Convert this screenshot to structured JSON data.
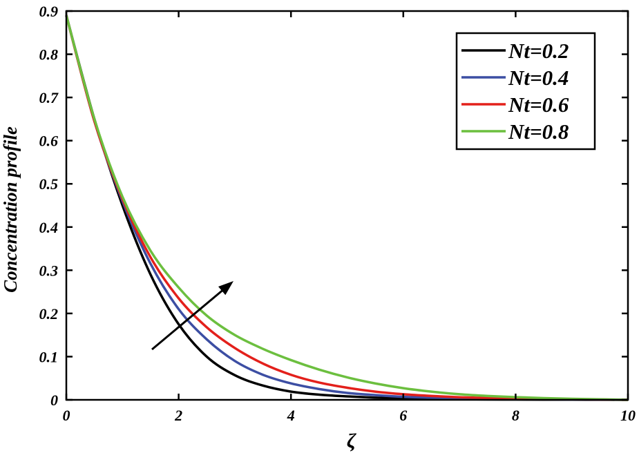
{
  "chart_data": {
    "type": "line",
    "xlabel": "ζ",
    "ylabel": "Concentration profile",
    "xlim": [
      0,
      10
    ],
    "ylim": [
      0,
      0.9
    ],
    "xticks": [
      0,
      2,
      4,
      6,
      8,
      10
    ],
    "yticks": [
      0,
      0.1,
      0.2,
      0.3,
      0.4,
      0.5,
      0.6,
      0.7,
      0.8,
      0.9
    ],
    "xtick_labels": [
      "0",
      "2",
      "4",
      "6",
      "8",
      "10"
    ],
    "ytick_labels": [
      "0",
      "0.1",
      "0.2",
      "0.3",
      "0.4",
      "0.5",
      "0.6",
      "0.7",
      "0.8",
      "0.9"
    ],
    "grid": false,
    "legend_position": "top-right",
    "annotation": "arrow indicating increasing Nt",
    "x": [
      0,
      0.5,
      1,
      1.5,
      2,
      2.5,
      3,
      3.5,
      4,
      4.5,
      5,
      5.5,
      6,
      6.5,
      7,
      7.5,
      8,
      8.5,
      9,
      9.5,
      10
    ],
    "series": [
      {
        "name": "Nt=0.2",
        "color": "#000000",
        "values": [
          0.89,
          0.65,
          0.45,
          0.29,
          0.175,
          0.1,
          0.057,
          0.033,
          0.019,
          0.012,
          0.008,
          0.005,
          0.003,
          0.002,
          0.0015,
          0.001,
          0.0008,
          0.0005,
          0.0003,
          0.0002,
          0.0
        ]
      },
      {
        "name": "Nt=0.4",
        "color": "#3c4ea3",
        "values": [
          0.89,
          0.645,
          0.46,
          0.315,
          0.21,
          0.14,
          0.09,
          0.058,
          0.038,
          0.025,
          0.016,
          0.011,
          0.007,
          0.005,
          0.0035,
          0.0025,
          0.0018,
          0.0012,
          0.0008,
          0.0004,
          0.0
        ]
      },
      {
        "name": "Nt=0.6",
        "color": "#e3201b",
        "values": [
          0.89,
          0.645,
          0.465,
          0.33,
          0.235,
          0.168,
          0.12,
          0.084,
          0.058,
          0.04,
          0.028,
          0.019,
          0.013,
          0.009,
          0.006,
          0.0042,
          0.003,
          0.002,
          0.0013,
          0.0007,
          0.0
        ]
      },
      {
        "name": "Nt=0.8",
        "color": "#6cbf3f",
        "values": [
          0.89,
          0.65,
          0.47,
          0.345,
          0.26,
          0.195,
          0.15,
          0.118,
          0.092,
          0.07,
          0.052,
          0.038,
          0.027,
          0.019,
          0.013,
          0.009,
          0.0062,
          0.004,
          0.0025,
          0.0012,
          0.0
        ]
      }
    ]
  }
}
